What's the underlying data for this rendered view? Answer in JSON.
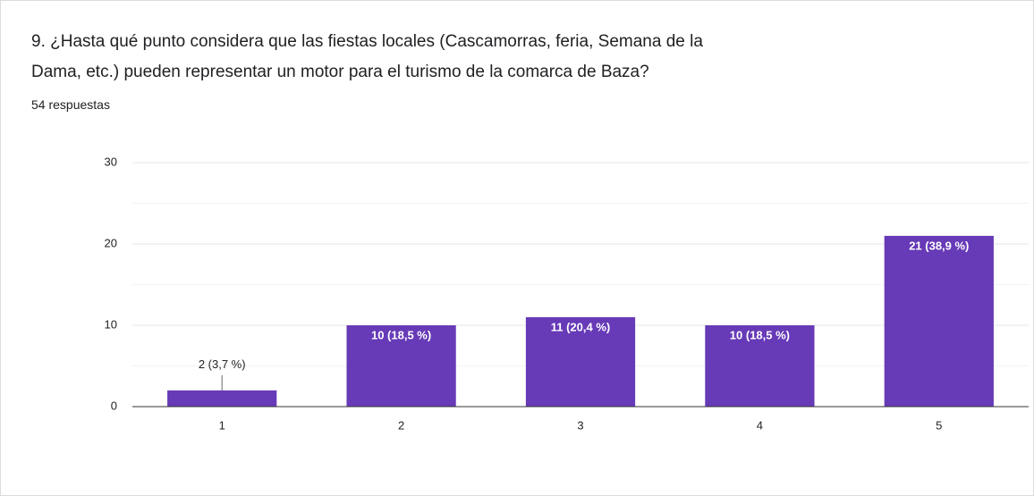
{
  "chart_data": {
    "type": "bar",
    "title": [
      "9. ¿Hasta qué punto considera que las fiestas locales (Cascamorras, feria, Semana de la",
      "Dama, etc.) pueden representar un motor para el turismo de la comarca de Baza?"
    ],
    "subtitle": "54 respuestas",
    "categories": [
      "1",
      "2",
      "3",
      "4",
      "5"
    ],
    "values": [
      2,
      10,
      11,
      10,
      21
    ],
    "value_labels": [
      "2 (3,7 %)",
      "10 (18,5 %)",
      "11 (20,4 %)",
      "10 (18,5 %)",
      "21 (38,9 %)"
    ],
    "color": "#673ab7",
    "ylim": [
      0,
      30
    ],
    "yticks": [
      0,
      10,
      20,
      30
    ],
    "minor_yticks": [
      5,
      15,
      25
    ],
    "grid": true
  }
}
